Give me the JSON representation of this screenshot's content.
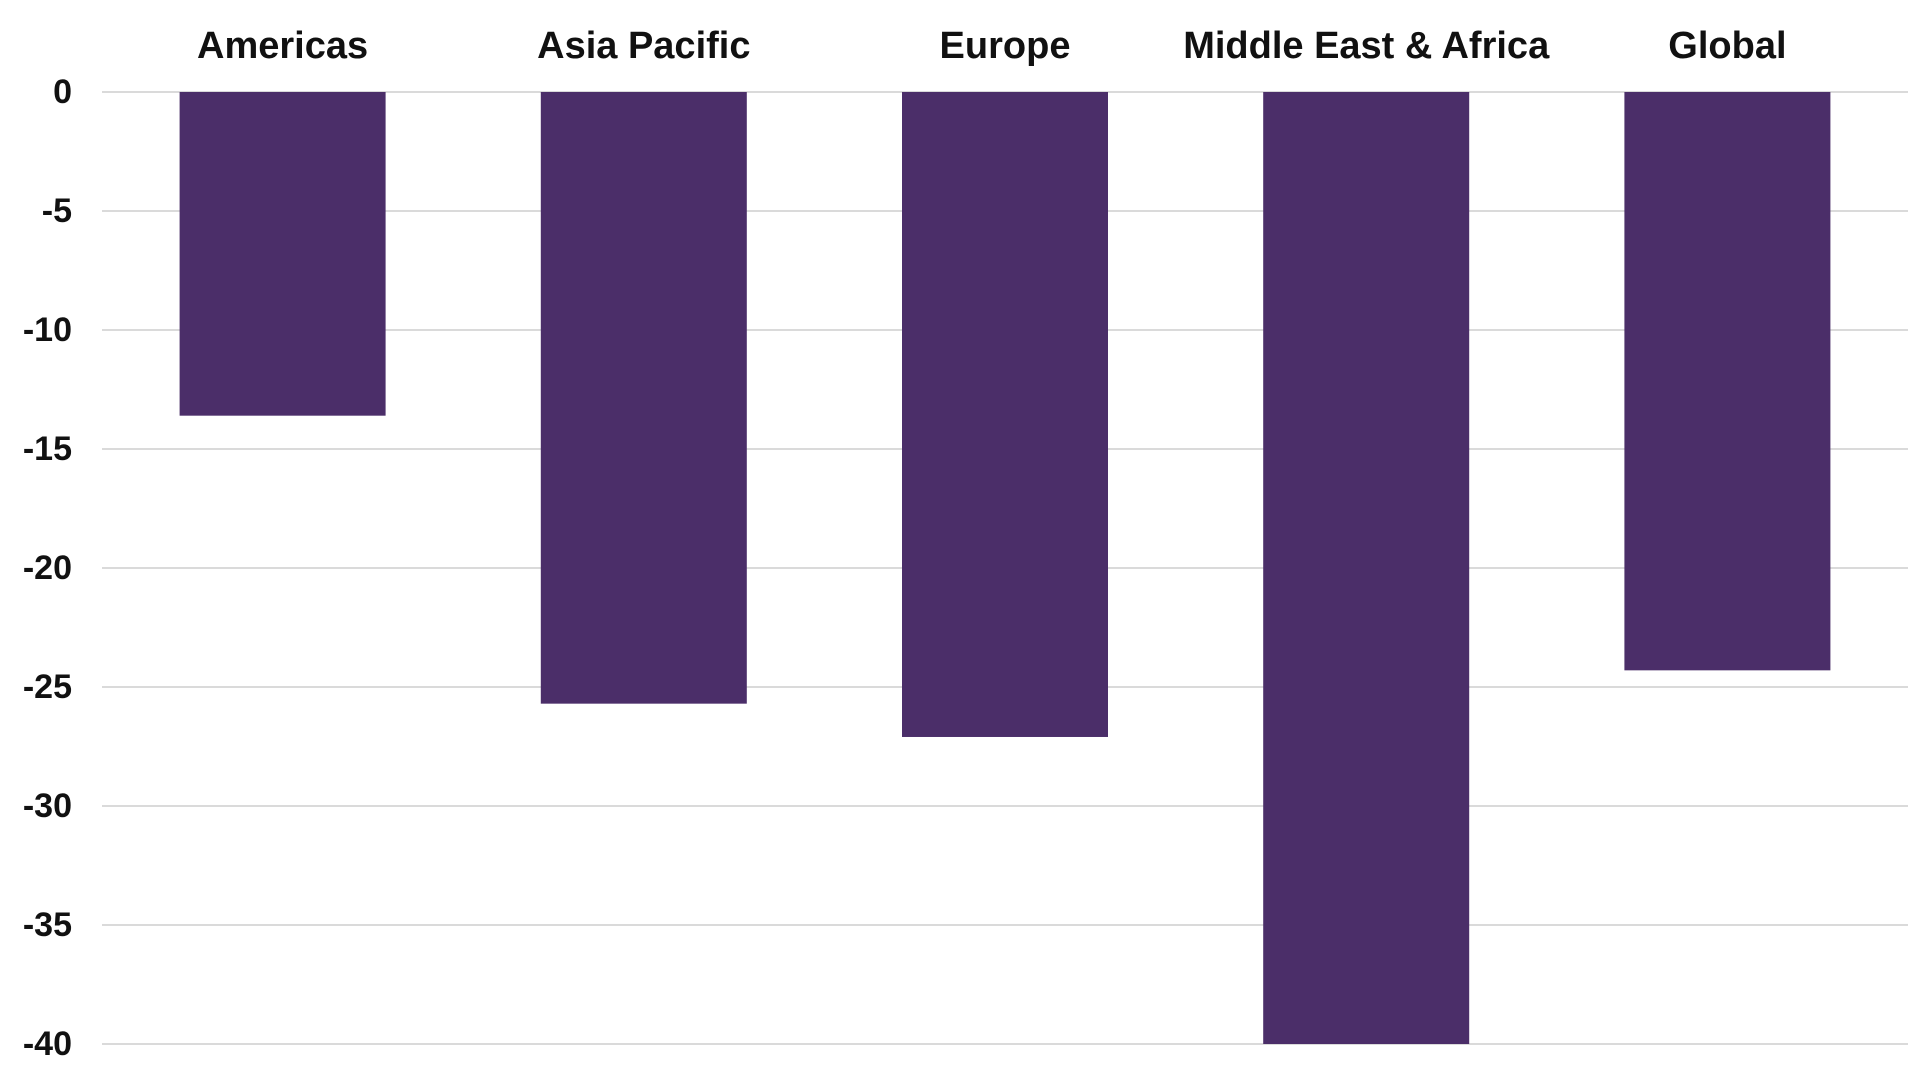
{
  "chart_data": {
    "type": "bar",
    "title": "",
    "xlabel": "",
    "ylabel": "",
    "categories": [
      "Americas",
      "Asia Pacific",
      "Europe",
      "Middle East & Africa",
      "Global"
    ],
    "values": [
      -13.6,
      -25.7,
      -27.1,
      -40,
      -24.3
    ],
    "ylim": [
      -40,
      0
    ],
    "yticks": [
      0,
      -5,
      -10,
      -15,
      -20,
      -25,
      -30,
      -35,
      -40
    ],
    "category_axis_position": "top",
    "grid": true,
    "legend": "none",
    "bar_color": "#4b2e69",
    "grid_color": "#dadada"
  }
}
